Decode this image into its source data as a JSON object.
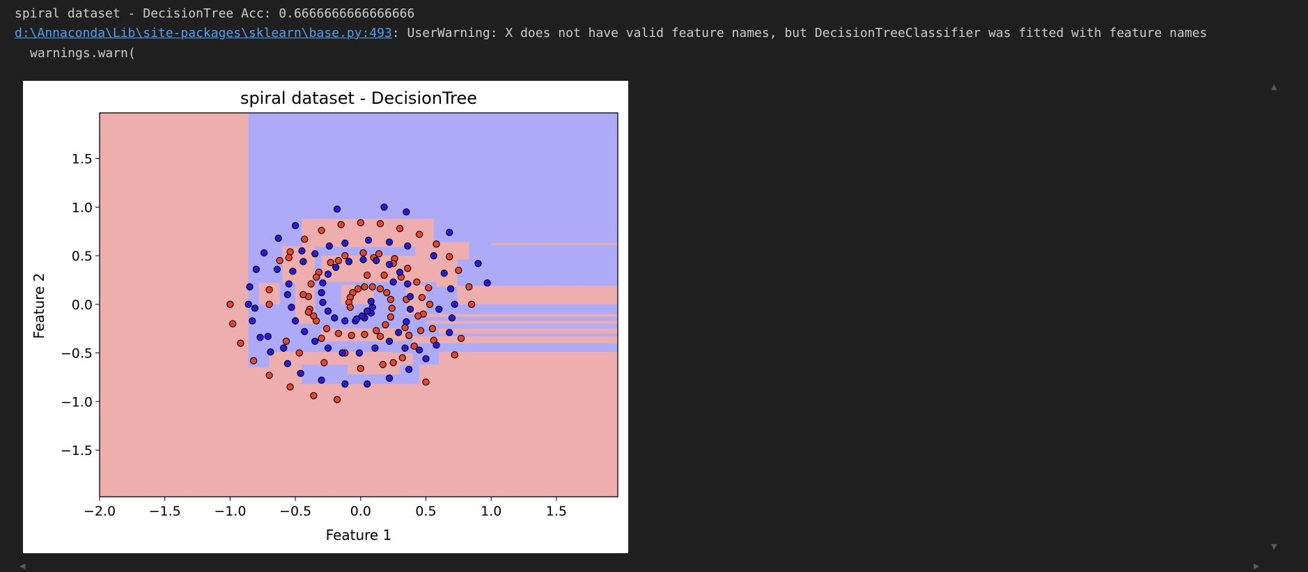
{
  "output": {
    "line1": "spiral dataset - DecisionTree Acc: 0.6666666666666666",
    "warning_link": "d:\\Annaconda\\Lib\\site-packages\\sklearn\\base.py:493",
    "warning_text": ": UserWarning: X does not have valid feature names, but DecisionTreeClassifier was fitted with feature names",
    "line3": "warnings.warn("
  },
  "scrollbar": {
    "up_icon": "triangle-up",
    "down_icon": "triangle-down",
    "left_icon": "triangle-left",
    "right_icon": "triangle-right"
  },
  "colors": {
    "background": "#1f1f1f",
    "text": "#cccccc",
    "link": "#4fa1f2",
    "class0_region": "#efaeae",
    "class1_region": "#adabf8",
    "class0_point": "#e8452c",
    "class1_point": "#2b18e0"
  },
  "chart_data": {
    "type": "scatter",
    "title": "spiral dataset - DecisionTree",
    "xlabel": "Feature 1",
    "ylabel": "Feature 2",
    "xlim": [
      -2.0,
      1.97
    ],
    "ylim": [
      -1.98,
      1.97
    ],
    "xticks": [
      "−2.0",
      "−1.5",
      "−1.0",
      "−0.5",
      "0.0",
      "0.5",
      "1.0",
      "1.5"
    ],
    "xtick_values": [
      -2.0,
      -1.5,
      -1.0,
      -0.5,
      0.0,
      0.5,
      1.0,
      1.5
    ],
    "yticks": [
      "1.5",
      "1.0",
      "0.5",
      "0.0",
      "−0.5",
      "−1.0",
      "−1.5"
    ],
    "ytick_values": [
      1.5,
      1.0,
      0.5,
      0.0,
      -0.5,
      -1.0,
      -1.5
    ],
    "background_class": 0,
    "decision_regions": [
      {
        "class": 1,
        "x": [
          -0.86,
          1.97
        ],
        "y": [
          -0.49,
          1.97
        ]
      },
      {
        "class": 0,
        "x": [
          1.0,
          1.97
        ],
        "y": [
          0.61,
          0.63
        ]
      },
      {
        "class": 0,
        "x": [
          -0.45,
          0.56
        ],
        "y": [
          0.59,
          0.88
        ]
      },
      {
        "class": 0,
        "x": [
          0.42,
          0.83
        ],
        "y": [
          0.46,
          0.64
        ]
      },
      {
        "class": 0,
        "x": [
          -0.6,
          -0.35
        ],
        "y": [
          0.22,
          0.6
        ]
      },
      {
        "class": 0,
        "x": [
          -0.3,
          0.6
        ],
        "y": [
          0.23,
          0.5
        ]
      },
      {
        "class": 0,
        "x": [
          0.58,
          0.74
        ],
        "y": [
          0.18,
          0.5
        ]
      },
      {
        "class": 0,
        "x": [
          0.74,
          1.97
        ],
        "y": [
          0.0,
          0.19
        ]
      },
      {
        "class": 0,
        "x": [
          -0.78,
          -0.62
        ],
        "y": [
          0.0,
          0.22
        ]
      },
      {
        "class": 0,
        "x": [
          -0.5,
          -0.35
        ],
        "y": [
          -0.2,
          0.22
        ]
      },
      {
        "class": 0,
        "x": [
          -0.15,
          0.1
        ],
        "y": [
          0.0,
          0.2
        ]
      },
      {
        "class": 0,
        "x": [
          0.35,
          0.5
        ],
        "y": [
          -0.1,
          0.2
        ]
      },
      {
        "class": 0,
        "x": [
          0.5,
          1.97
        ],
        "y": [
          -0.13,
          -0.1
        ]
      },
      {
        "class": 0,
        "x": [
          0.5,
          1.97
        ],
        "y": [
          -0.2,
          -0.17
        ]
      },
      {
        "class": 0,
        "x": [
          0.6,
          1.97
        ],
        "y": [
          -0.3,
          -0.25
        ]
      },
      {
        "class": 0,
        "x": [
          0.4,
          1.97
        ],
        "y": [
          -0.4,
          -0.33
        ]
      },
      {
        "class": 0,
        "x": [
          -0.3,
          0.35
        ],
        "y": [
          -0.38,
          -0.25
        ]
      },
      {
        "class": 0,
        "x": [
          0.5,
          1.97
        ],
        "y": [
          -0.5,
          -0.49
        ]
      },
      {
        "class": 0,
        "x": [
          -0.86,
          -0.5
        ],
        "y": [
          -0.65,
          -0.49
        ]
      },
      {
        "class": 0,
        "x": [
          -0.4,
          0.25
        ],
        "y": [
          -0.62,
          -0.49
        ]
      },
      {
        "class": 1,
        "x": [
          -0.86,
          -0.7
        ],
        "y": [
          -0.65,
          -0.4
        ]
      },
      {
        "class": 1,
        "x": [
          0.25,
          0.4
        ],
        "y": [
          -0.5,
          -0.4
        ]
      },
      {
        "class": 1,
        "x": [
          0.4,
          0.6
        ],
        "y": [
          -0.62,
          -0.49
        ]
      },
      {
        "class": 1,
        "x": [
          -0.45,
          0.45
        ],
        "y": [
          -0.82,
          -0.62
        ]
      },
      {
        "class": 0,
        "x": [
          -0.1,
          0.3
        ],
        "y": [
          -0.72,
          -0.62
        ]
      }
    ],
    "series": [
      {
        "class": 0,
        "points": [
          [
            -1.0,
            0.0
          ],
          [
            -0.98,
            -0.2
          ],
          [
            -0.92,
            -0.4
          ],
          [
            -0.82,
            -0.58
          ],
          [
            -0.7,
            -0.73
          ],
          [
            -0.54,
            -0.85
          ],
          [
            -0.36,
            -0.94
          ],
          [
            -0.18,
            -0.98
          ],
          [
            0.0,
            -0.66
          ],
          [
            0.17,
            -0.62
          ],
          [
            0.32,
            -0.55
          ],
          [
            0.41,
            -0.43
          ],
          [
            0.46,
            -0.27
          ],
          [
            0.48,
            -0.1
          ],
          [
            0.47,
            0.07
          ],
          [
            0.43,
            0.23
          ],
          [
            0.36,
            0.37
          ],
          [
            0.26,
            0.47
          ],
          [
            0.14,
            0.52
          ],
          [
            0.02,
            0.53
          ],
          [
            -0.12,
            0.5
          ],
          [
            -0.23,
            0.43
          ],
          [
            -0.32,
            0.33
          ],
          [
            -0.38,
            0.21
          ],
          [
            -0.4,
            0.08
          ],
          [
            -0.39,
            -0.05
          ],
          [
            -0.34,
            -0.17
          ],
          [
            -0.26,
            -0.25
          ],
          [
            -0.17,
            -0.3
          ],
          [
            -0.07,
            -0.32
          ],
          [
            0.03,
            -0.31
          ],
          [
            0.12,
            -0.27
          ],
          [
            0.19,
            -0.21
          ],
          [
            0.23,
            -0.13
          ],
          [
            0.24,
            -0.04
          ],
          [
            0.23,
            0.05
          ],
          [
            0.2,
            0.12
          ],
          [
            0.15,
            0.16
          ],
          [
            0.09,
            0.18
          ],
          [
            0.03,
            0.18
          ],
          [
            -0.02,
            0.16
          ],
          [
            -0.06,
            0.12
          ],
          [
            -0.08,
            0.07
          ],
          [
            -0.09,
            0.02
          ],
          [
            -0.08,
            -0.03
          ],
          [
            -0.7,
            0.15
          ],
          [
            -0.7,
            0.0
          ],
          [
            -0.57,
            -0.38
          ],
          [
            -0.47,
            -0.5
          ],
          [
            -0.4,
            -0.08
          ],
          [
            -0.28,
            -0.6
          ],
          [
            -0.12,
            -0.5
          ],
          [
            0.15,
            -0.33
          ],
          [
            0.25,
            -0.6
          ],
          [
            0.5,
            -0.8
          ],
          [
            0.56,
            -0.37
          ],
          [
            0.55,
            -0.25
          ],
          [
            0.77,
            -0.35
          ],
          [
            0.72,
            -0.52
          ],
          [
            0.75,
            0.35
          ],
          [
            0.68,
            0.49
          ],
          [
            0.83,
            0.18
          ],
          [
            0.85,
            0.0
          ],
          [
            0.58,
            0.62
          ],
          [
            0.45,
            0.72
          ],
          [
            0.3,
            0.78
          ],
          [
            0.15,
            0.83
          ],
          [
            0.0,
            0.84
          ],
          [
            -0.15,
            0.82
          ],
          [
            -0.3,
            0.76
          ],
          [
            -0.43,
            0.67
          ],
          [
            -0.54,
            0.54
          ],
          [
            -0.62,
            0.45
          ],
          [
            -0.55,
            0.48
          ],
          [
            -0.34,
            0.28
          ],
          [
            -0.17,
            0.45
          ],
          [
            0.1,
            0.48
          ],
          [
            0.25,
            0.42
          ],
          [
            -0.44,
            0.1
          ],
          [
            -0.36,
            -0.12
          ],
          [
            -0.3,
            -0.35
          ],
          [
            0.35,
            0.05
          ],
          [
            0.44,
            -0.12
          ],
          [
            0.53,
            0.0
          ],
          [
            0.52,
            0.17
          ],
          [
            0.31,
            0.28
          ],
          [
            0.18,
            0.3
          ],
          [
            0.05,
            0.3
          ],
          [
            0.34,
            -0.24
          ],
          [
            0.37,
            -0.32
          ]
        ]
      },
      {
        "class": 1,
        "points": [
          [
            0.97,
            0.22
          ],
          [
            0.9,
            0.42
          ],
          [
            0.68,
            0.74
          ],
          [
            0.35,
            0.95
          ],
          [
            0.18,
            1.0
          ],
          [
            -0.18,
            0.98
          ],
          [
            -0.5,
            0.81
          ],
          [
            -0.63,
            0.68
          ],
          [
            -0.74,
            0.53
          ],
          [
            -0.8,
            0.36
          ],
          [
            -0.85,
            0.18
          ],
          [
            -0.86,
            0.0
          ],
          [
            -0.83,
            -0.17
          ],
          [
            -0.77,
            -0.34
          ],
          [
            -0.69,
            -0.49
          ],
          [
            -0.56,
            -0.61
          ],
          [
            -0.46,
            -0.71
          ],
          [
            -0.3,
            -0.78
          ],
          [
            -0.12,
            -0.82
          ],
          [
            0.05,
            -0.82
          ],
          [
            0.22,
            -0.76
          ],
          [
            0.37,
            -0.67
          ],
          [
            0.5,
            -0.56
          ],
          [
            0.58,
            -0.42
          ],
          [
            0.68,
            -0.29
          ],
          [
            0.7,
            -0.14
          ],
          [
            0.72,
            0.0
          ],
          [
            0.69,
            0.16
          ],
          [
            0.64,
            0.32
          ],
          [
            0.56,
            0.5
          ],
          [
            0.36,
            0.6
          ],
          [
            0.22,
            0.64
          ],
          [
            0.06,
            0.66
          ],
          [
            -0.12,
            0.63
          ],
          [
            -0.24,
            0.6
          ],
          [
            -0.35,
            0.52
          ],
          [
            -0.44,
            0.44
          ],
          [
            -0.52,
            0.34
          ],
          [
            -0.55,
            0.21
          ],
          [
            -0.56,
            0.1
          ],
          [
            -0.53,
            -0.03
          ],
          [
            -0.5,
            -0.17
          ],
          [
            -0.43,
            -0.28
          ],
          [
            -0.35,
            -0.38
          ],
          [
            -0.25,
            -0.45
          ],
          [
            -0.14,
            -0.5
          ],
          [
            -0.01,
            -0.5
          ],
          [
            0.11,
            -0.45
          ],
          [
            0.22,
            -0.38
          ],
          [
            0.29,
            -0.29
          ],
          [
            0.35,
            -0.18
          ],
          [
            0.38,
            -0.05
          ],
          [
            0.38,
            0.08
          ],
          [
            0.36,
            0.21
          ],
          [
            0.3,
            0.33
          ],
          [
            0.22,
            0.41
          ],
          [
            0.12,
            0.45
          ],
          [
            0.02,
            0.46
          ],
          [
            -0.09,
            0.44
          ],
          [
            -0.19,
            0.38
          ],
          [
            -0.25,
            0.31
          ],
          [
            -0.29,
            0.22
          ],
          [
            -0.3,
            0.12
          ],
          [
            -0.29,
            0.02
          ],
          [
            -0.25,
            -0.07
          ],
          [
            -0.2,
            -0.14
          ],
          [
            -0.12,
            -0.17
          ],
          [
            -0.04,
            -0.17
          ],
          [
            0.03,
            -0.14
          ],
          [
            0.08,
            -0.09
          ],
          [
            0.09,
            -0.03
          ],
          [
            0.08,
            0.03
          ],
          [
            0.05,
            -0.07
          ],
          [
            0.01,
            -0.12
          ],
          [
            -0.03,
            -0.15
          ],
          [
            0.34,
            -0.45
          ],
          [
            0.25,
            0.23
          ],
          [
            -0.45,
            0.55
          ],
          [
            -0.64,
            0.36
          ],
          [
            -0.81,
            -0.04
          ],
          [
            -0.71,
            -0.33
          ],
          [
            -0.59,
            -0.45
          ],
          [
            0.45,
            -0.47
          ],
          [
            0.6,
            -0.05
          ]
        ]
      }
    ]
  }
}
